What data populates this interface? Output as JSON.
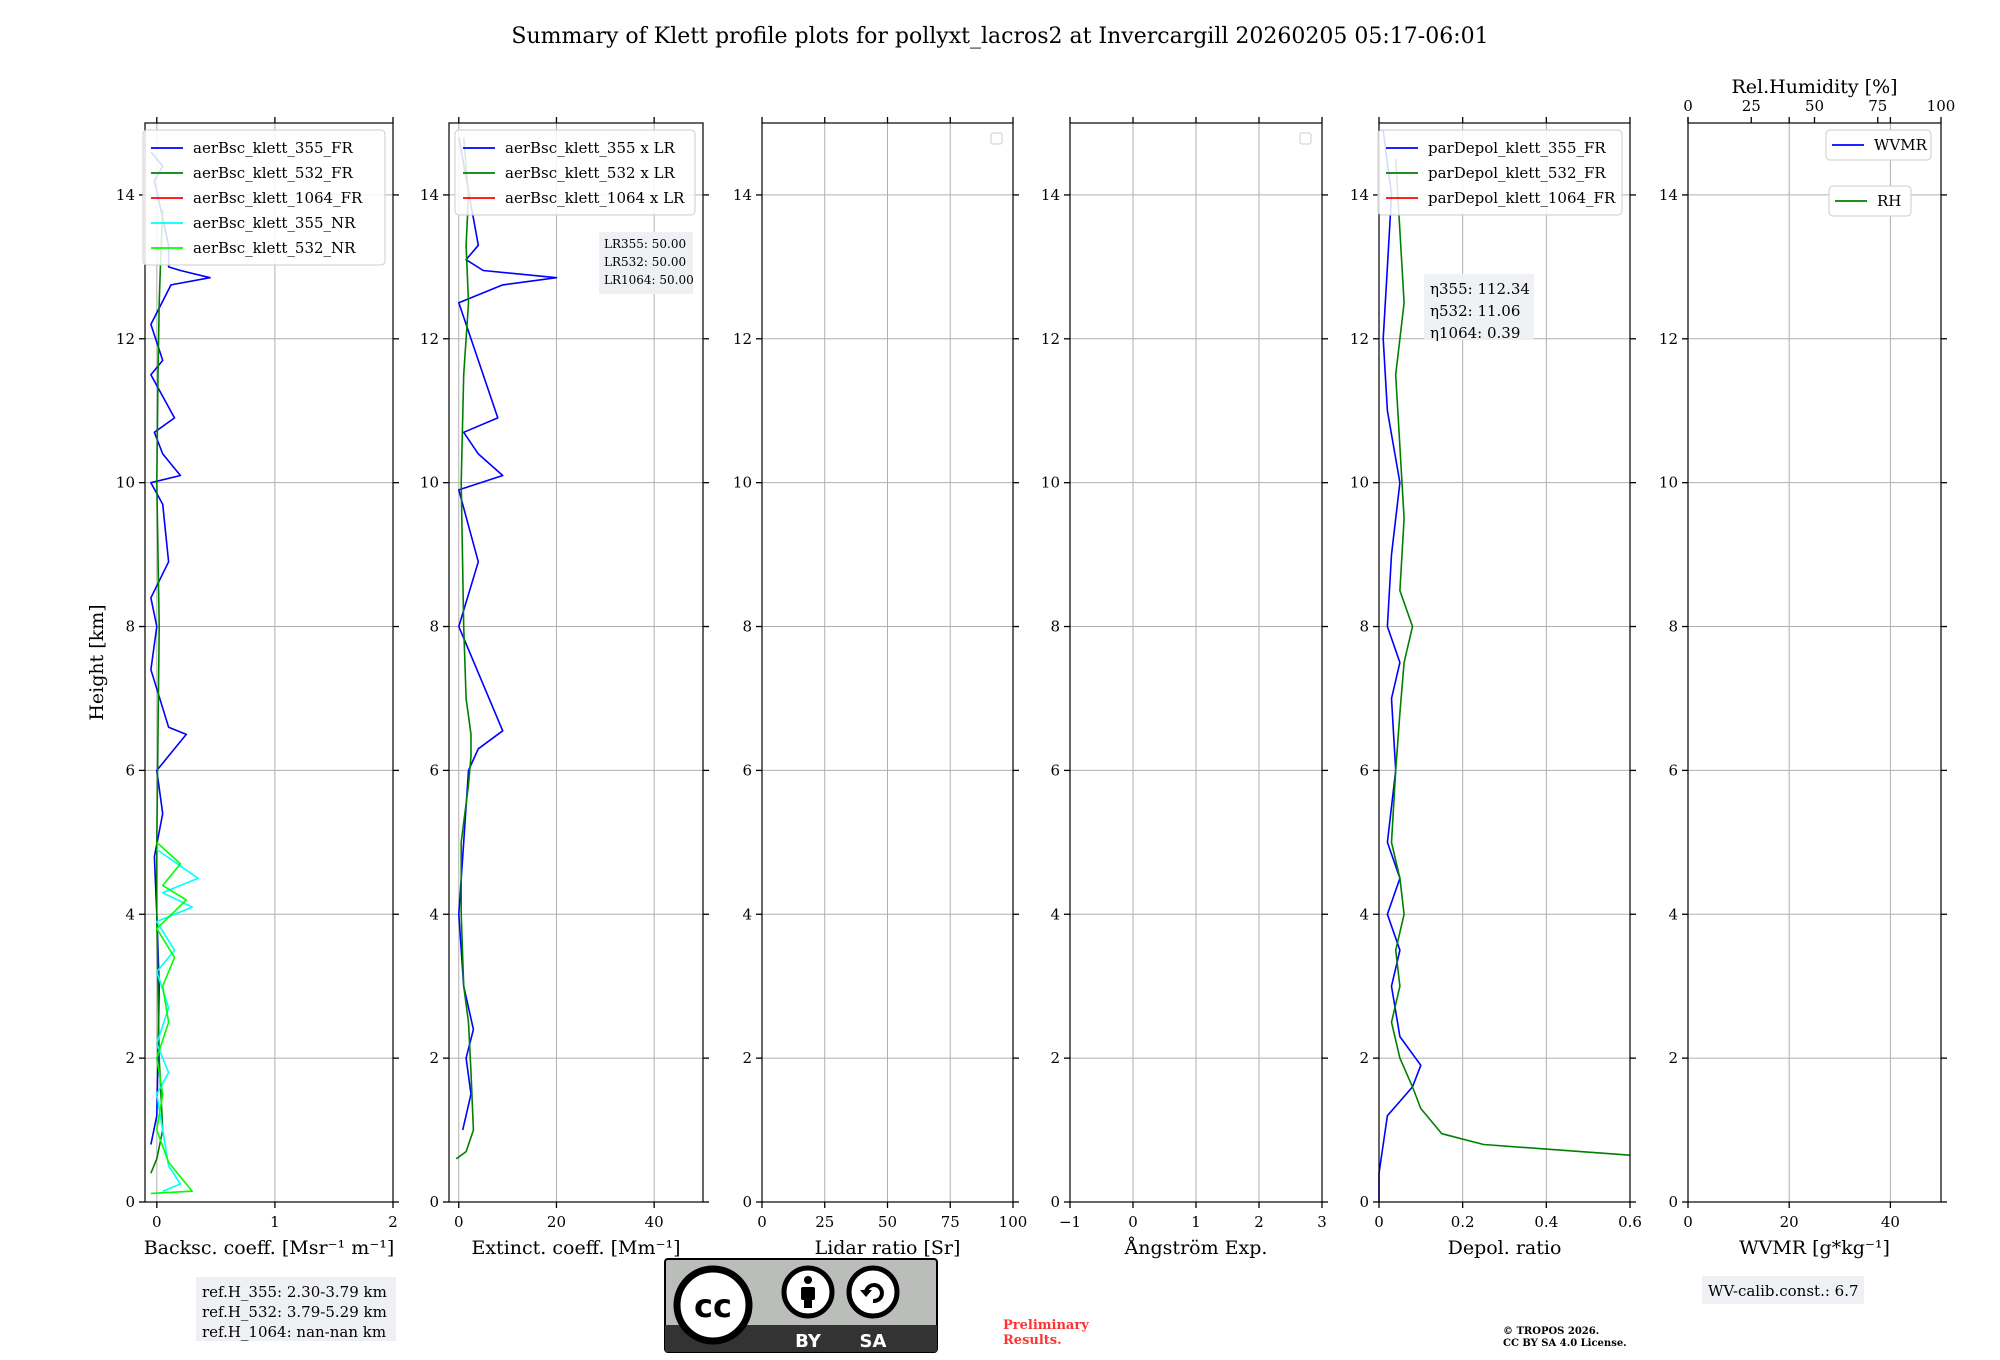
{
  "suptitle": "Summary of Klett profile plots for pollyxt_lacros2 at Invercargill 20260205 05:17-06:01",
  "chart_data": [
    {
      "id": "backscatter",
      "type": "line",
      "xlabel": "Backsc. coeff. [Msr⁻¹ m⁻¹]",
      "ylabel": "Height [km]",
      "xlim": [
        -0.1,
        2.0
      ],
      "ylim": [
        0,
        15
      ],
      "xticks": [
        0,
        1,
        2
      ],
      "yticks": [
        0,
        2,
        4,
        6,
        8,
        10,
        12,
        14
      ],
      "legend": "top-right",
      "series": [
        {
          "name": "aerBsc_klett_355_FR",
          "color": "#0000ff",
          "points": [
            [
              -0.05,
              14.6
            ],
            [
              0.05,
              14.4
            ],
            [
              -0.02,
              14.2
            ],
            [
              0.1,
              13.3
            ],
            [
              0.1,
              13.0
            ],
            [
              0.2,
              12.95
            ],
            [
              0.45,
              12.85
            ],
            [
              0.12,
              12.75
            ],
            [
              -0.05,
              12.2
            ],
            [
              0.05,
              11.7
            ],
            [
              -0.05,
              11.5
            ],
            [
              0.15,
              10.9
            ],
            [
              -0.02,
              10.7
            ],
            [
              0.05,
              10.4
            ],
            [
              0.2,
              10.1
            ],
            [
              -0.05,
              10.0
            ],
            [
              0.05,
              9.7
            ],
            [
              0.1,
              8.9
            ],
            [
              -0.05,
              8.4
            ],
            [
              0.0,
              8.0
            ],
            [
              -0.05,
              7.4
            ],
            [
              0.1,
              6.6
            ],
            [
              0.25,
              6.5
            ],
            [
              0.15,
              6.3
            ],
            [
              0.0,
              6.0
            ],
            [
              0.05,
              5.4
            ],
            [
              -0.02,
              4.8
            ],
            [
              0.0,
              4.0
            ],
            [
              0.02,
              3.0
            ],
            [
              0.01,
              2.0
            ],
            [
              0.0,
              1.2
            ],
            [
              -0.05,
              0.8
            ]
          ]
        },
        {
          "name": "aerBsc_klett_532_FR",
          "color": "#008000",
          "points": [
            [
              0.05,
              13.8
            ],
            [
              0.03,
              13.0
            ],
            [
              0.02,
              12.5
            ],
            [
              0.01,
              11.5
            ],
            [
              0.0,
              10.0
            ],
            [
              0.02,
              8.0
            ],
            [
              0.01,
              6.5
            ],
            [
              0.0,
              5.0
            ],
            [
              0.0,
              4.0
            ],
            [
              0.02,
              2.0
            ],
            [
              0.05,
              1.0
            ],
            [
              0.0,
              0.6
            ],
            [
              -0.05,
              0.4
            ]
          ]
        },
        {
          "name": "aerBsc_klett_1064_FR",
          "color": "#ff0000",
          "points": []
        },
        {
          "name": "aerBsc_klett_355_NR",
          "color": "#00ffff",
          "points": [
            [
              0.0,
              4.9
            ],
            [
              0.35,
              4.5
            ],
            [
              0.05,
              4.3
            ],
            [
              0.3,
              4.1
            ],
            [
              0.0,
              3.9
            ],
            [
              0.15,
              3.5
            ],
            [
              0.0,
              3.2
            ],
            [
              0.1,
              2.7
            ],
            [
              0.0,
              2.2
            ],
            [
              0.1,
              1.8
            ],
            [
              0.0,
              1.5
            ],
            [
              0.05,
              1.0
            ],
            [
              0.1,
              0.5
            ],
            [
              0.2,
              0.25
            ],
            [
              0.05,
              0.15
            ]
          ]
        },
        {
          "name": "aerBsc_klett_532_NR",
          "color": "#00ff00",
          "points": [
            [
              0.0,
              5.0
            ],
            [
              0.2,
              4.7
            ],
            [
              0.05,
              4.4
            ],
            [
              0.25,
              4.2
            ],
            [
              0.0,
              3.8
            ],
            [
              0.15,
              3.4
            ],
            [
              0.05,
              3.0
            ],
            [
              0.1,
              2.5
            ],
            [
              0.0,
              2.0
            ],
            [
              0.05,
              1.5
            ],
            [
              0.0,
              1.0
            ],
            [
              0.1,
              0.55
            ],
            [
              0.3,
              0.15
            ],
            [
              -0.05,
              0.12
            ]
          ]
        }
      ],
      "annotation": [
        "ref.H_355: 2.30-3.79 km",
        "ref.H_532: 3.79-5.29 km",
        "ref.H_1064: nan-nan km"
      ]
    },
    {
      "id": "extinction",
      "type": "line",
      "xlabel": "Extinct. coeff. [Mm⁻¹]",
      "xlim": [
        -2,
        50
      ],
      "ylim": [
        0,
        15
      ],
      "xticks": [
        0,
        20,
        40
      ],
      "yticks": [
        0,
        2,
        4,
        6,
        8,
        10,
        12,
        14
      ],
      "legend": "top-right",
      "series": [
        {
          "name": "aerBsc_klett_355 x LR",
          "color": "#0000ff",
          "points": [
            [
              0.0,
              14.8
            ],
            [
              4.0,
              13.3
            ],
            [
              1.5,
              13.1
            ],
            [
              5.0,
              12.95
            ],
            [
              20.0,
              12.85
            ],
            [
              9.0,
              12.75
            ],
            [
              0.0,
              12.5
            ],
            [
              8.0,
              10.9
            ],
            [
              1.0,
              10.7
            ],
            [
              4.0,
              10.4
            ],
            [
              9.0,
              10.1
            ],
            [
              0.0,
              9.9
            ],
            [
              4.0,
              8.9
            ],
            [
              0.0,
              8.0
            ],
            [
              9.0,
              6.55
            ],
            [
              4.0,
              6.3
            ],
            [
              2.0,
              6.0
            ],
            [
              1.0,
              5.0
            ],
            [
              0.0,
              4.0
            ],
            [
              1.0,
              3.0
            ],
            [
              3.0,
              2.4
            ],
            [
              1.5,
              2.0
            ],
            [
              2.5,
              1.5
            ],
            [
              0.8,
              1.0
            ]
          ]
        },
        {
          "name": "aerBsc_klett_532 x LR",
          "color": "#008000",
          "points": [
            [
              1.0,
              14.8
            ],
            [
              2.0,
              14.0
            ],
            [
              1.5,
              13.3
            ],
            [
              2.0,
              12.5
            ],
            [
              1.0,
              11.5
            ],
            [
              0.5,
              10.0
            ],
            [
              1.0,
              8.0
            ],
            [
              1.5,
              7.0
            ],
            [
              2.5,
              6.5
            ],
            [
              2.5,
              6.2
            ],
            [
              2.0,
              5.8
            ],
            [
              0.5,
              5.0
            ],
            [
              0.5,
              4.0
            ],
            [
              1.0,
              3.0
            ],
            [
              2.0,
              2.5
            ],
            [
              2.5,
              1.8
            ],
            [
              3.0,
              1.0
            ],
            [
              1.5,
              0.7
            ],
            [
              -0.5,
              0.6
            ]
          ]
        },
        {
          "name": "aerBsc_klett_1064 x LR",
          "color": "#ff0000",
          "points": []
        }
      ],
      "annotation": [
        "LR355: 50.00",
        "LR532: 50.00",
        "LR1064: 50.00"
      ]
    },
    {
      "id": "lidar_ratio",
      "type": "line",
      "xlabel": "Lidar ratio [Sr]",
      "xlim": [
        0,
        100
      ],
      "ylim": [
        0,
        15
      ],
      "xticks": [
        0,
        25,
        50,
        75,
        100
      ],
      "yticks": [
        0,
        2,
        4,
        6,
        8,
        10,
        12,
        14
      ],
      "series": []
    },
    {
      "id": "angstrom",
      "type": "line",
      "xlabel": "Ångström Exp.",
      "xlim": [
        -1,
        3
      ],
      "ylim": [
        0,
        15
      ],
      "xticks": [
        -1,
        0,
        1,
        2,
        3
      ],
      "yticks": [
        0,
        2,
        4,
        6,
        8,
        10,
        12,
        14
      ],
      "series": []
    },
    {
      "id": "depol",
      "type": "line",
      "xlabel": "Depol. ratio",
      "xlim": [
        0,
        0.6
      ],
      "ylim": [
        0,
        15
      ],
      "xticks": [
        0.0,
        0.2,
        0.4,
        0.6
      ],
      "yticks": [
        0,
        2,
        4,
        6,
        8,
        10,
        12,
        14
      ],
      "legend": "top-right",
      "series": [
        {
          "name": "parDepol_klett_355_FR",
          "color": "#0000ff",
          "points": [
            [
              0.0,
              0.0
            ],
            [
              0.0,
              0.4
            ],
            [
              0.02,
              1.2
            ],
            [
              0.08,
              1.6
            ],
            [
              0.1,
              1.9
            ],
            [
              0.05,
              2.3
            ],
            [
              0.03,
              3.0
            ],
            [
              0.05,
              3.5
            ],
            [
              0.02,
              4.0
            ],
            [
              0.05,
              4.5
            ],
            [
              0.02,
              5.0
            ],
            [
              0.04,
              6.0
            ],
            [
              0.03,
              7.0
            ],
            [
              0.05,
              7.5
            ],
            [
              0.02,
              8.0
            ],
            [
              0.03,
              9.0
            ],
            [
              0.05,
              10.0
            ],
            [
              0.02,
              11.0
            ],
            [
              0.01,
              12.0
            ],
            [
              0.02,
              13.0
            ],
            [
              0.03,
              14.0
            ],
            [
              0.01,
              14.9
            ]
          ]
        },
        {
          "name": "parDepol_klett_532_FR",
          "color": "#008000",
          "points": [
            [
              0.6,
              0.65
            ],
            [
              0.25,
              0.8
            ],
            [
              0.15,
              0.95
            ],
            [
              0.1,
              1.3
            ],
            [
              0.08,
              1.6
            ],
            [
              0.05,
              2.0
            ],
            [
              0.03,
              2.5
            ],
            [
              0.05,
              3.0
            ],
            [
              0.04,
              3.5
            ],
            [
              0.06,
              4.0
            ],
            [
              0.05,
              4.5
            ],
            [
              0.03,
              5.0
            ],
            [
              0.04,
              6.0
            ],
            [
              0.05,
              6.8
            ],
            [
              0.06,
              7.5
            ],
            [
              0.08,
              8.0
            ],
            [
              0.05,
              8.5
            ],
            [
              0.06,
              9.5
            ],
            [
              0.05,
              10.5
            ],
            [
              0.04,
              11.5
            ],
            [
              0.06,
              12.5
            ],
            [
              0.05,
              13.5
            ],
            [
              0.04,
              14.5
            ]
          ]
        },
        {
          "name": "parDepol_klett_1064_FR",
          "color": "#ff0000",
          "points": []
        }
      ],
      "annotation": [
        "η355: 112.34",
        "η532: 11.06",
        "η1064: 0.39"
      ]
    },
    {
      "id": "wvmr",
      "type": "line",
      "xlabel": "WVMR [g*kg⁻¹]",
      "top_xlabel": "Rel.Humidity [%]",
      "xlim": [
        0,
        50
      ],
      "top_xlim": [
        0,
        100
      ],
      "ylim": [
        0,
        15
      ],
      "xticks": [
        0,
        20,
        40
      ],
      "top_xticks": [
        0,
        25,
        50,
        75,
        100
      ],
      "yticks": [
        0,
        2,
        4,
        6,
        8,
        10,
        12,
        14
      ],
      "series": [
        {
          "name": "WVMR",
          "color": "#0000ff",
          "points": []
        },
        {
          "name": "RH",
          "color": "#008000",
          "points": []
        }
      ],
      "annotation": [
        "WV-calib.const.: 6.7"
      ]
    }
  ],
  "footer": {
    "license_badge": {
      "cc": "cc",
      "by": "BY",
      "sa": "SA"
    },
    "preliminary_line1": "Preliminary",
    "preliminary_line2": "Results.",
    "copyright_line1": "© TROPOS 2026.",
    "copyright_line2": "CC BY SA 4.0 License."
  }
}
